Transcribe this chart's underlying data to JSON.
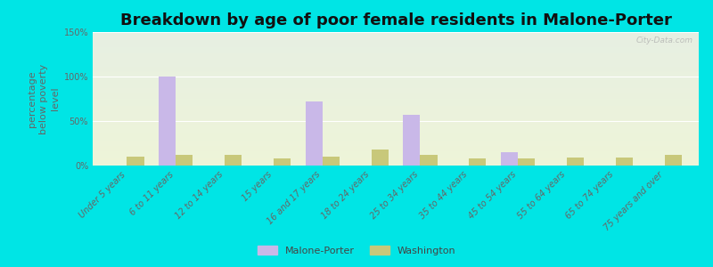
{
  "title": "Breakdown by age of poor female residents in Malone-Porter",
  "categories": [
    "Under 5 years",
    "6 to 11 years",
    "12 to 14 years",
    "15 years",
    "16 and 17 years",
    "18 to 24 years",
    "25 to 34 years",
    "35 to 44 years",
    "45 to 54 years",
    "55 to 64 years",
    "65 to 74 years",
    "75 years and over"
  ],
  "malone_porter": [
    0,
    100,
    0,
    0,
    72,
    0,
    57,
    0,
    15,
    0,
    0,
    0
  ],
  "washington": [
    10,
    12,
    12,
    8,
    10,
    18,
    12,
    8,
    8,
    9,
    9,
    12
  ],
  "malone_color": "#c9b8e8",
  "washington_color": "#c8c87a",
  "ylabel": "percentage\nbelow poverty\nlevel",
  "ylim": [
    0,
    150
  ],
  "yticks": [
    0,
    50,
    100,
    150
  ],
  "ytick_labels": [
    "0%",
    "50%",
    "100%",
    "150%"
  ],
  "background_color": "#00e5e5",
  "bar_width": 0.35,
  "title_fontsize": 13,
  "axis_label_fontsize": 8,
  "tick_label_fontsize": 7,
  "legend_labels": [
    "Malone-Porter",
    "Washington"
  ],
  "watermark": "City-Data.com"
}
